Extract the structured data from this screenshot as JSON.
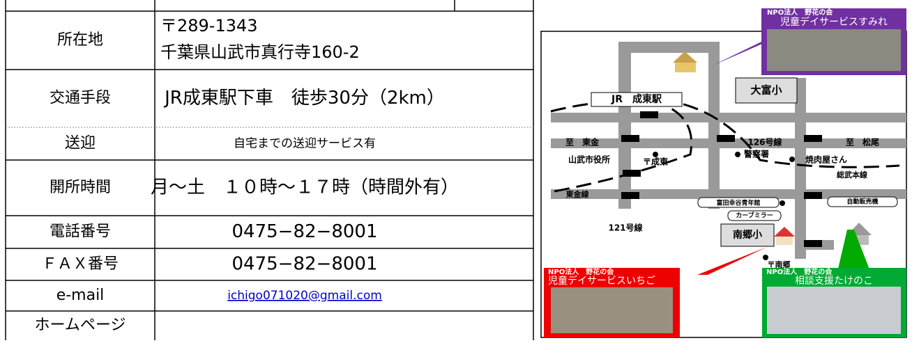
{
  "table": {
    "rows": [
      {
        "label": "所在地",
        "lines": [
          "〒289-1343",
          "千葉県山武市真行寺160-2"
        ]
      },
      {
        "label": "交通手段",
        "lines": [
          "JR成東駅下車　徒歩30分（2km）"
        ]
      },
      {
        "label": "送迎",
        "lines": [
          "自宅までの送迎サービス有"
        ]
      },
      {
        "label": "開所時間",
        "lines": [
          "月～土　１０時～１７時（時間外有）"
        ]
      },
      {
        "label": "電話番号",
        "lines": [
          "0475−82−8001"
        ]
      },
      {
        "label": "ＦＡＸ番号",
        "lines": [
          "0475−82−8001"
        ]
      },
      {
        "label": "e-mail",
        "lines": [
          "ichigo071020@gmail.com"
        ]
      },
      {
        "label": "ホームページ",
        "lines": []
      }
    ]
  },
  "map": {
    "labels": [
      "JR　成東駅",
      "大富小",
      "至　東金",
      "126号線",
      "至　松尾",
      "警察署",
      "焼肉屋さん",
      "山武市役所",
      "〒成東",
      "総武本線",
      "東金線",
      "富田幸谷青年館",
      "自動販売機",
      "カーブミラー",
      "121号線",
      "南郷小",
      "〒南郷"
    ],
    "callouts": [
      {
        "org": "NPO法人　野花の会",
        "name": "児童デイサービスすみれ"
      },
      {
        "org": "NPO法人　野花の会",
        "name": "児童デイサービスいちご"
      },
      {
        "org": "NPO法人　野花の会",
        "name": "相談支援たけのこ"
      }
    ]
  }
}
